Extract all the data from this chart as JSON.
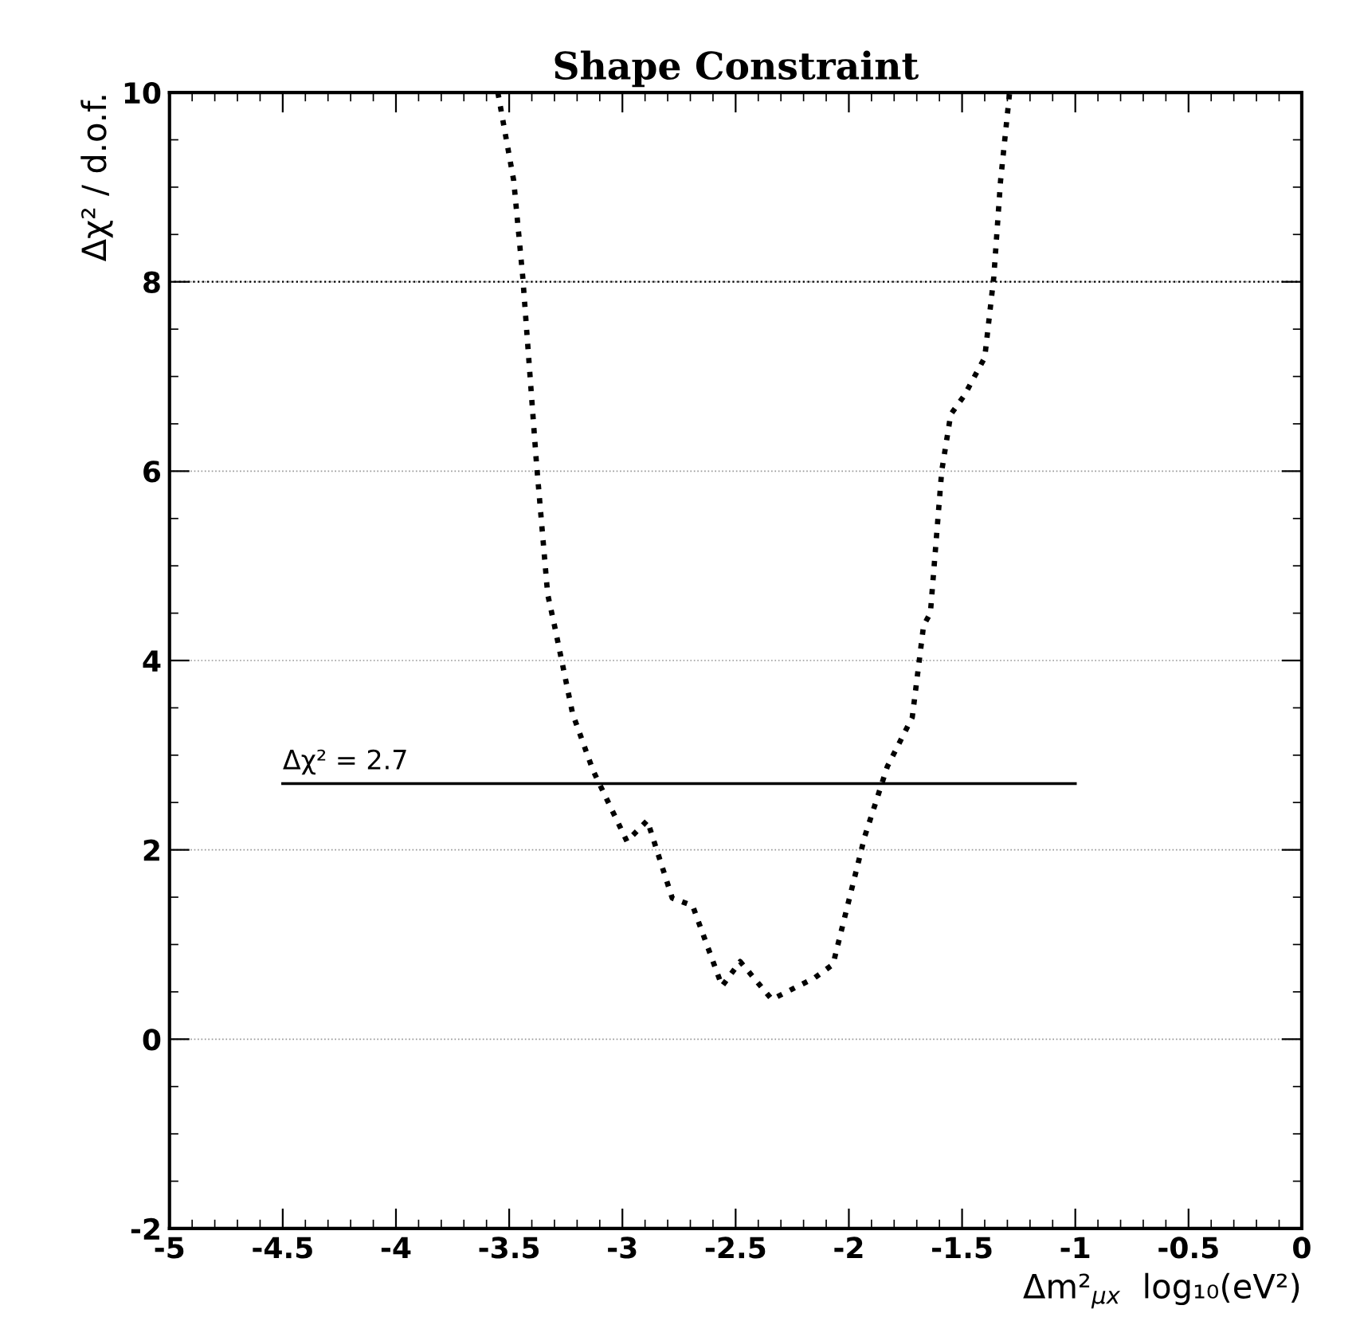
{
  "chart_data": {
    "type": "line",
    "title": "Shape Constraint",
    "xlabel": "Δm²$_{μx}$  log₁₀(eV²)",
    "ylabel": "Δχ² / d.o.f.",
    "series": [
      {
        "color": "#000000",
        "line_style": "dotted",
        "x": [
          -3.55,
          -3.48,
          -3.44,
          -3.38,
          -3.33,
          -3.3,
          -3.22,
          -3.13,
          -2.98,
          -2.89,
          -2.78,
          -2.69,
          -2.56,
          -2.48,
          -2.34,
          -2.15,
          -2.07,
          -1.93,
          -1.83,
          -1.72,
          -1.67,
          -1.64,
          -1.59,
          -1.55,
          -1.49,
          -1.4,
          -1.36,
          -1.33,
          -1.29
        ],
        "values": [
          10,
          9.07,
          8.05,
          6.1,
          4.7,
          4.37,
          3.44,
          2.84,
          2.09,
          2.31,
          1.49,
          1.41,
          0.56,
          0.82,
          0.42,
          0.65,
          0.79,
          2.14,
          2.88,
          3.4,
          4.37,
          4.5,
          6.0,
          6.6,
          6.8,
          7.2,
          8.05,
          9.07,
          10
        ]
      },
      {
        "color": "#000000",
        "line_style": "solid",
        "x": [
          -4.5,
          -1
        ],
        "values": [
          2.7,
          2.7
        ]
      }
    ],
    "annotations": [
      {
        "text": "Δχ² = 2.7",
        "x": -4.5,
        "y": 2.7
      }
    ],
    "ref_lines": [
      {
        "axis": "y",
        "value": 8,
        "color": "#000000",
        "line_style": "dotted"
      }
    ],
    "xlim": [
      -5,
      0
    ],
    "ylim": [
      -2,
      10
    ],
    "xticks": [
      -5,
      -4.5,
      -4,
      -3.5,
      -3,
      -2.5,
      -2,
      -1.5,
      -1,
      -0.5,
      0
    ],
    "yticks": [
      -2,
      0,
      2,
      4,
      6,
      8,
      10
    ],
    "grid": "y",
    "legend": false,
    "marker": "none"
  }
}
